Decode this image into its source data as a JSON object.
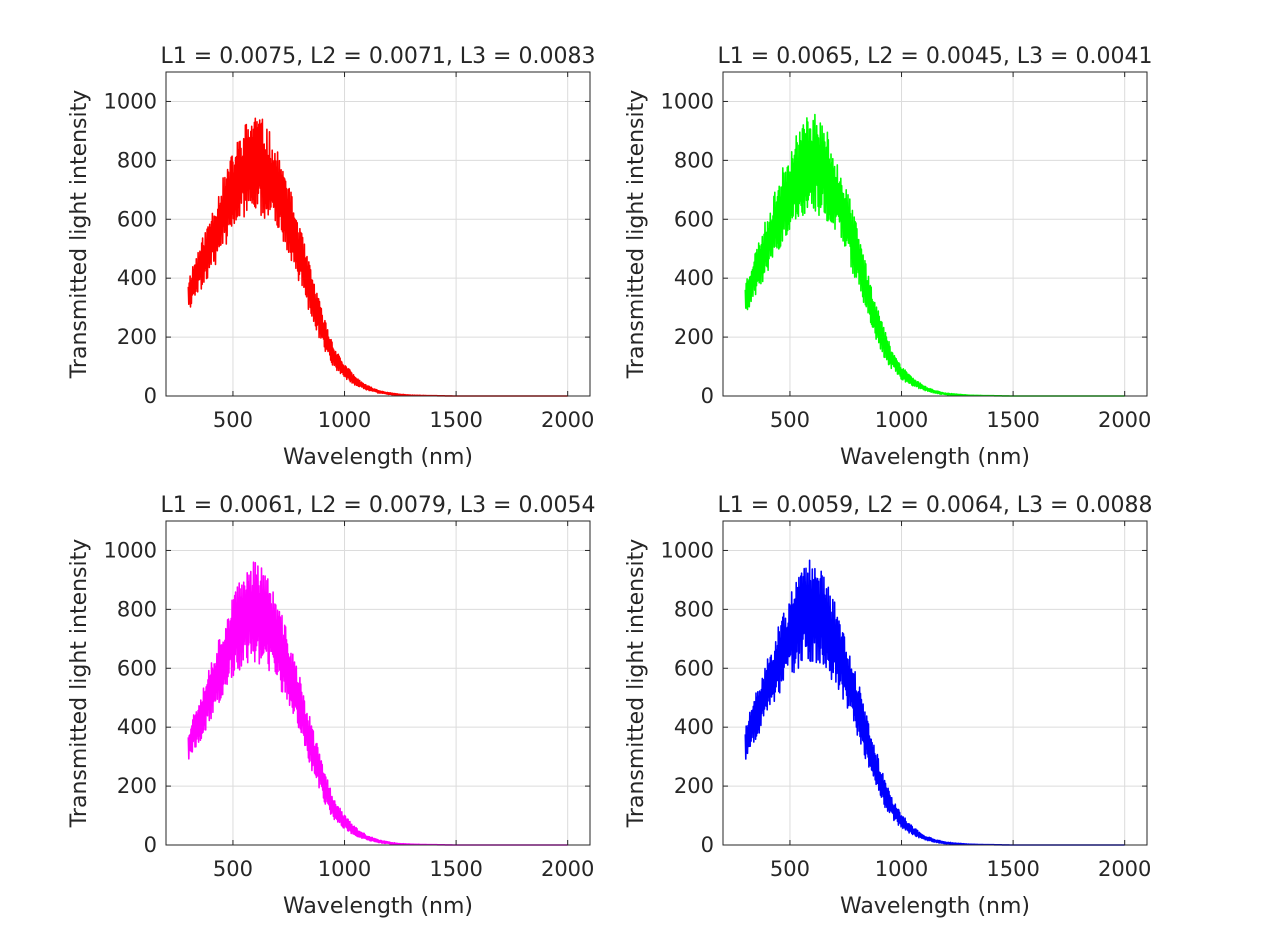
{
  "chart_data": [
    {
      "type": "line",
      "title": "L1 = 0.0075, L2 = 0.0071, L3 = 0.0083",
      "xlabel": "Wavelength (nm)",
      "ylabel": "Transmitted light intensity",
      "xlim": [
        200,
        2100
      ],
      "ylim": [
        0,
        1100
      ],
      "xticks": [
        500,
        1000,
        1500,
        2000
      ],
      "yticks": [
        0,
        200,
        400,
        600,
        800,
        1000
      ],
      "grid": true,
      "color": "#ff0000",
      "seed": 11,
      "x": [
        300,
        325,
        350,
        375,
        400,
        425,
        450,
        475,
        500,
        525,
        550,
        575,
        600,
        625,
        650,
        675,
        700,
        725,
        750,
        775,
        800,
        825,
        850,
        875,
        900,
        925,
        950,
        975,
        1000,
        1050,
        1100,
        1150,
        1200,
        1250,
        1300,
        1400,
        1500,
        1600,
        1700,
        1800,
        1900,
        2000
      ],
      "y": [
        340,
        390,
        430,
        470,
        520,
        560,
        610,
        650,
        690,
        730,
        760,
        780,
        790,
        780,
        760,
        730,
        690,
        650,
        600,
        540,
        480,
        410,
        350,
        290,
        230,
        180,
        140,
        110,
        85,
        50,
        28,
        15,
        8,
        4,
        2,
        1,
        0,
        0,
        0,
        0,
        0,
        0
      ],
      "amp": [
        60,
        70,
        80,
        90,
        100,
        110,
        120,
        130,
        140,
        150,
        160,
        170,
        180,
        170,
        160,
        150,
        140,
        130,
        120,
        110,
        100,
        90,
        80,
        70,
        60,
        50,
        40,
        30,
        25,
        15,
        8,
        5,
        3,
        2,
        1,
        0,
        0,
        0,
        0,
        0,
        0,
        0
      ]
    },
    {
      "type": "line",
      "title": "L1 = 0.0065, L2 = 0.0045, L3 = 0.0041",
      "xlabel": "Wavelength (nm)",
      "ylabel": "Transmitted light intensity",
      "xlim": [
        200,
        2100
      ],
      "ylim": [
        0,
        1100
      ],
      "xticks": [
        500,
        1000,
        1500,
        2000
      ],
      "yticks": [
        0,
        200,
        400,
        600,
        800,
        1000
      ],
      "grid": true,
      "color": "#00ff00",
      "seed": 23,
      "x": [
        300,
        325,
        350,
        375,
        400,
        425,
        450,
        475,
        500,
        525,
        550,
        575,
        600,
        625,
        650,
        675,
        700,
        725,
        750,
        775,
        800,
        825,
        850,
        875,
        900,
        925,
        950,
        975,
        1000,
        1050,
        1100,
        1150,
        1200,
        1250,
        1300,
        1400,
        1500,
        1600,
        1700,
        1800,
        1900,
        2000
      ],
      "y": [
        330,
        380,
        425,
        470,
        520,
        565,
        615,
        660,
        700,
        735,
        765,
        785,
        795,
        785,
        765,
        735,
        695,
        650,
        600,
        540,
        480,
        410,
        345,
        285,
        225,
        175,
        135,
        105,
        80,
        48,
        27,
        14,
        7,
        4,
        2,
        1,
        0,
        0,
        0,
        0,
        0,
        0
      ],
      "amp": [
        60,
        70,
        80,
        90,
        100,
        110,
        120,
        130,
        140,
        150,
        160,
        170,
        180,
        170,
        160,
        150,
        140,
        130,
        120,
        110,
        100,
        90,
        80,
        70,
        60,
        50,
        40,
        30,
        25,
        15,
        8,
        5,
        3,
        2,
        1,
        0,
        0,
        0,
        0,
        0,
        0,
        0
      ]
    },
    {
      "type": "line",
      "title": "L1 = 0.0061, L2 = 0.0079, L3 = 0.0054",
      "xlabel": "Wavelength (nm)",
      "ylabel": "Transmitted light intensity",
      "xlim": [
        200,
        2100
      ],
      "ylim": [
        0,
        1100
      ],
      "xticks": [
        500,
        1000,
        1500,
        2000
      ],
      "yticks": [
        0,
        200,
        400,
        600,
        800,
        1000
      ],
      "grid": true,
      "color": "#ff00ff",
      "seed": 37,
      "x": [
        300,
        325,
        350,
        375,
        400,
        425,
        450,
        475,
        500,
        525,
        550,
        575,
        600,
        625,
        650,
        675,
        700,
        725,
        750,
        775,
        800,
        825,
        850,
        875,
        900,
        925,
        950,
        975,
        1000,
        1050,
        1100,
        1150,
        1200,
        1250,
        1300,
        1400,
        1500,
        1600,
        1700,
        1800,
        1900,
        2000
      ],
      "y": [
        335,
        385,
        430,
        475,
        525,
        570,
        620,
        665,
        705,
        740,
        770,
        790,
        795,
        785,
        760,
        725,
        685,
        640,
        590,
        530,
        470,
        400,
        340,
        280,
        220,
        170,
        130,
        100,
        78,
        45,
        25,
        13,
        7,
        3,
        2,
        1,
        0,
        0,
        0,
        0,
        0,
        0
      ],
      "amp": [
        60,
        70,
        80,
        90,
        100,
        110,
        120,
        130,
        140,
        150,
        160,
        170,
        180,
        170,
        160,
        150,
        140,
        130,
        120,
        110,
        100,
        90,
        80,
        70,
        60,
        50,
        40,
        30,
        25,
        15,
        8,
        5,
        3,
        2,
        1,
        0,
        0,
        0,
        0,
        0,
        0,
        0
      ]
    },
    {
      "type": "line",
      "title": "L1 = 0.0059, L2 = 0.0064, L3 = 0.0088",
      "xlabel": "Wavelength (nm)",
      "ylabel": "Transmitted light intensity",
      "xlim": [
        200,
        2100
      ],
      "ylim": [
        0,
        1100
      ],
      "xticks": [
        500,
        1000,
        1500,
        2000
      ],
      "yticks": [
        0,
        200,
        400,
        600,
        800,
        1000
      ],
      "grid": true,
      "color": "#0000ff",
      "seed": 51,
      "x": [
        300,
        325,
        350,
        375,
        400,
        425,
        450,
        475,
        500,
        525,
        550,
        575,
        600,
        625,
        650,
        675,
        700,
        725,
        750,
        775,
        800,
        825,
        850,
        875,
        900,
        925,
        950,
        975,
        1000,
        1050,
        1100,
        1150,
        1200,
        1250,
        1300,
        1400,
        1500,
        1600,
        1700,
        1800,
        1900,
        2000
      ],
      "y": [
        345,
        395,
        440,
        485,
        535,
        580,
        625,
        665,
        705,
        740,
        770,
        790,
        795,
        785,
        760,
        725,
        685,
        640,
        590,
        535,
        475,
        405,
        345,
        285,
        225,
        175,
        135,
        105,
        80,
        47,
        26,
        14,
        7,
        4,
        2,
        1,
        0,
        0,
        0,
        0,
        0,
        0
      ],
      "amp": [
        60,
        70,
        80,
        90,
        100,
        110,
        120,
        130,
        140,
        150,
        160,
        170,
        180,
        170,
        160,
        150,
        140,
        130,
        120,
        110,
        100,
        90,
        80,
        70,
        60,
        50,
        40,
        30,
        25,
        15,
        8,
        5,
        3,
        2,
        1,
        0,
        0,
        0,
        0,
        0,
        0,
        0
      ]
    }
  ]
}
